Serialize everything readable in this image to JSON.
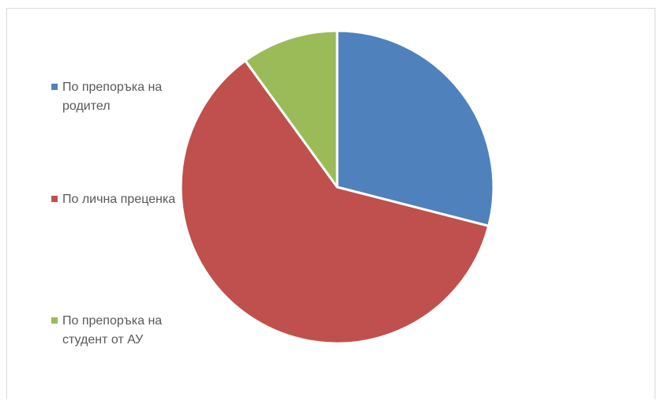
{
  "chart_data": {
    "type": "pie",
    "categories": [
      "По препоръка на родител",
      "По лична преценка",
      "По препоръка на студент от АУ"
    ],
    "values": [
      29,
      61,
      10
    ],
    "colors": [
      "#4f81bd",
      "#c0504d",
      "#9bbb59"
    ],
    "title": "",
    "legend_position": "left"
  },
  "legend": {
    "items": [
      {
        "label": "По препоръка на родител",
        "color": "#4f81bd"
      },
      {
        "label": "По лична преценка",
        "color": "#c0504d"
      },
      {
        "label": "По препоръка на студент от АУ",
        "color": "#9bbb59"
      }
    ]
  }
}
